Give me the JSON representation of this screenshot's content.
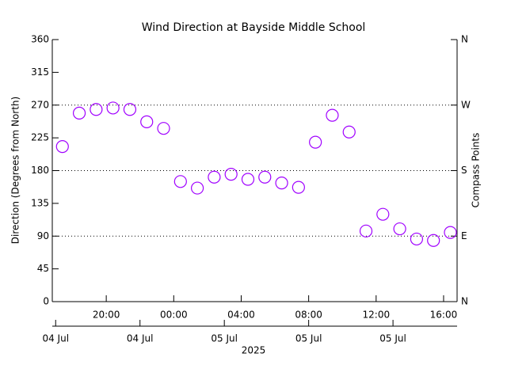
{
  "chart_data": {
    "type": "scatter",
    "title": "Wind Direction at Bayside Middle School",
    "y_label": "Direction (Degrees from North)",
    "y2_label": "Compass Points",
    "x_label": "2025",
    "color": "#a000ff",
    "grid": true,
    "xlim": [
      "2025-07-04T16:48",
      "2025-07-05T16:48"
    ],
    "xticks": [
      {
        "value": "2025-07-04T20:00",
        "label": "20:00"
      },
      {
        "value": "2025-07-05T00:00",
        "label": "00:00"
      },
      {
        "value": "2025-07-05T04:00",
        "label": "04:00"
      },
      {
        "value": "2025-07-05T08:00",
        "label": "08:00"
      },
      {
        "value": "2025-07-05T12:00",
        "label": "12:00"
      },
      {
        "value": "2025-07-05T16:00",
        "label": "16:00"
      }
    ],
    "date_ticks": [
      {
        "value": "2025-07-04T17:00",
        "label": "04 Jul"
      },
      {
        "value": "2025-07-04T22:00",
        "label": "04 Jul"
      },
      {
        "value": "2025-07-05T03:00",
        "label": "05 Jul"
      },
      {
        "value": "2025-07-05T08:00",
        "label": "05 Jul"
      },
      {
        "value": "2025-07-05T13:00",
        "label": "05 Jul"
      }
    ],
    "ylim": [
      0,
      360
    ],
    "yticks": [
      0,
      45,
      90,
      135,
      180,
      225,
      270,
      315,
      360
    ],
    "y2lim": [
      0,
      360
    ],
    "y2ticks": [
      {
        "value": 0,
        "label": "N"
      },
      {
        "value": 90,
        "label": "E"
      },
      {
        "value": 180,
        "label": "S"
      },
      {
        "value": 270,
        "label": "W"
      },
      {
        "value": 360,
        "label": "N"
      }
    ],
    "x": [
      "2025-07-04T17:24",
      "2025-07-04T18:24",
      "2025-07-04T19:24",
      "2025-07-04T20:24",
      "2025-07-04T21:24",
      "2025-07-04T22:24",
      "2025-07-04T23:24",
      "2025-07-05T00:24",
      "2025-07-05T01:24",
      "2025-07-05T02:24",
      "2025-07-05T03:24",
      "2025-07-05T04:24",
      "2025-07-05T05:24",
      "2025-07-05T06:24",
      "2025-07-05T07:24",
      "2025-07-05T08:24",
      "2025-07-05T09:24",
      "2025-07-05T10:24",
      "2025-07-05T11:24",
      "2025-07-05T12:24",
      "2025-07-05T13:24",
      "2025-07-05T14:24",
      "2025-07-05T15:24",
      "2025-07-05T16:24"
    ],
    "values": [
      213,
      259,
      264,
      266,
      264,
      247,
      238,
      165,
      156,
      171,
      175,
      168,
      171,
      163,
      157,
      219,
      256,
      233,
      97,
      120,
      100,
      86,
      84,
      95
    ]
  }
}
